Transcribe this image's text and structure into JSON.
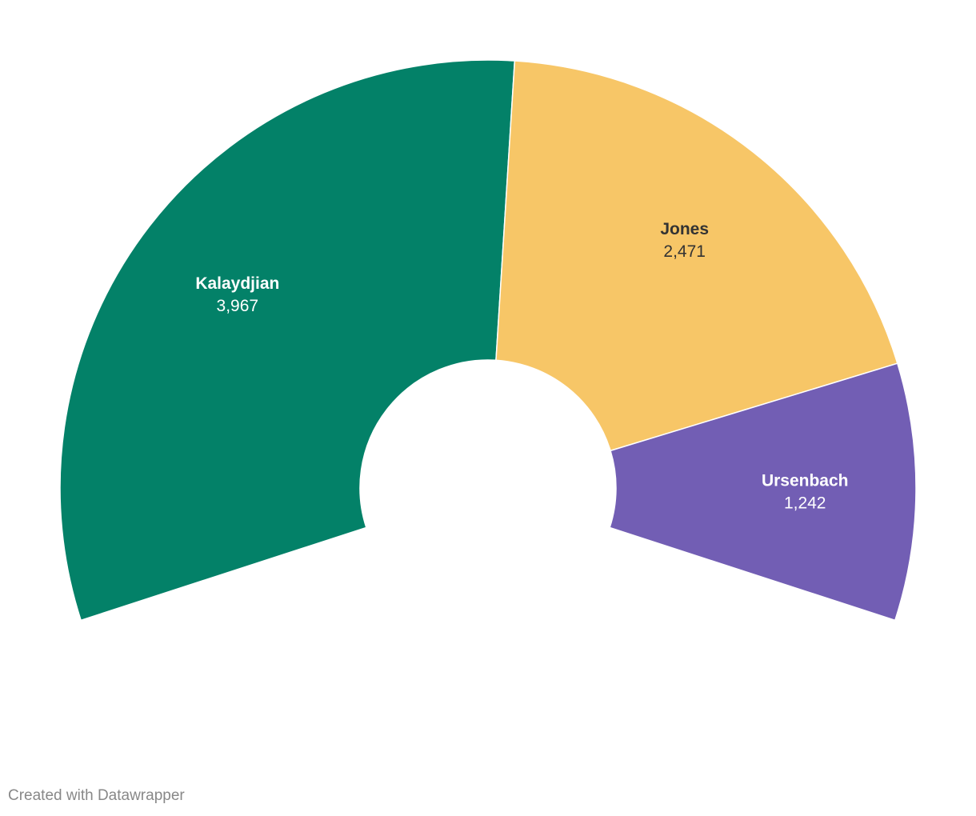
{
  "chart_data": {
    "type": "pie",
    "variant": "half-donut",
    "categories": [
      "Kalaydjian",
      "Jones",
      "Ursenbach"
    ],
    "values": [
      3967,
      2471,
      1242
    ],
    "value_labels": [
      "3,967",
      "2,471",
      "1,242"
    ],
    "colors": [
      "#038168",
      "#f7c667",
      "#725eb4"
    ],
    "label_colors": [
      "#ffffff",
      "#333333",
      "#ffffff"
    ],
    "title": "",
    "legend": "none"
  },
  "footer": {
    "credit": "Created with Datawrapper"
  }
}
